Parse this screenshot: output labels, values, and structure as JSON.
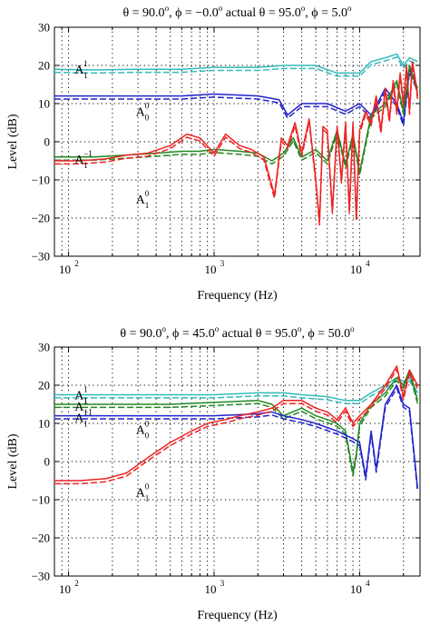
{
  "chart_data": [
    {
      "type": "line",
      "title": {
        "t1": "θ = 90.0",
        "t2": ", ϕ = −0.0",
        "t3": " actual θ = 95.0",
        "t4": ", ϕ = 5.0",
        "deg": "o"
      },
      "xlabel": "Frequency (Hz)",
      "ylabel": "Level (dB)",
      "xscale": "log",
      "xlim": [
        80,
        26000
      ],
      "ylim": [
        -30,
        30
      ],
      "yticks": [
        "30",
        "20",
        "10",
        "0",
        "−10",
        "−20",
        "−30"
      ],
      "xticks": [
        {
          "base": "10",
          "exp": "2"
        },
        {
          "base": "10",
          "exp": "3"
        },
        {
          "base": "10",
          "exp": "4"
        }
      ],
      "grid": true,
      "annotations": [
        {
          "base": "A",
          "sub": "1",
          "sup": "1",
          "x": 110,
          "y": 19
        },
        {
          "base": "A",
          "sub": "0",
          "sup": "0",
          "x": 290,
          "y": 8
        },
        {
          "base": "A",
          "sub": "1",
          "sup": "−1",
          "x": 110,
          "y": -4.5
        },
        {
          "base": "A",
          "sub": "1",
          "sup": "0",
          "x": 290,
          "y": -15
        }
      ],
      "series": [
        {
          "color": "#33bbbb",
          "x": [
            80,
            150,
            300,
            600,
            1000,
            2000,
            3000,
            5000,
            7000,
            10000,
            12000,
            15000,
            18000,
            20000,
            22000,
            25000
          ],
          "y": [
            19,
            18.8,
            19,
            19,
            19.5,
            19.5,
            20,
            20,
            18,
            18,
            21,
            22,
            23,
            20,
            22,
            21
          ]
        },
        {
          "color": "#2222cc",
          "x": [
            80,
            150,
            300,
            600,
            1000,
            2000,
            2800,
            3200,
            4000,
            6000,
            8000,
            10000,
            12000,
            15000,
            18000,
            20000,
            22000,
            25000
          ],
          "y": [
            12,
            12,
            12,
            12,
            12.5,
            12,
            11,
            7,
            10,
            10,
            8,
            10,
            7,
            14,
            10,
            5,
            19,
            14
          ]
        },
        {
          "color": "#228822",
          "x": [
            80,
            150,
            250,
            400,
            600,
            800,
            1000,
            1500,
            2000,
            2500,
            3000,
            3500,
            4000,
            5000,
            6000,
            7000,
            8000,
            9000,
            10000,
            12000,
            15000,
            18000,
            20000,
            22000,
            25000
          ],
          "y": [
            -4,
            -4,
            -3.5,
            -3,
            -2.5,
            -2.5,
            -2,
            -2.5,
            -3,
            -5,
            -3,
            1,
            -4,
            -2,
            -5,
            3,
            -6,
            2,
            -8,
            7,
            10,
            16,
            8,
            20,
            14
          ]
        },
        {
          "color": "#ee2222",
          "x": [
            80,
            120,
            180,
            250,
            350,
            500,
            650,
            800,
            1000,
            1200,
            1500,
            1800,
            2200,
            2600,
            2900,
            3200,
            3600,
            4000,
            4500,
            5000,
            5300,
            5600,
            6000,
            6500,
            7000,
            7500,
            8000,
            8500,
            9000,
            9500,
            10000,
            11000,
            12000,
            13000,
            14000,
            15000,
            16000,
            17000,
            18000,
            19000,
            20000,
            21000,
            22000,
            23000,
            24000,
            25000
          ],
          "y": [
            -5,
            -5,
            -4.5,
            -3.5,
            -3,
            -1,
            2,
            1,
            -3,
            2,
            -1,
            -2,
            -4,
            -14,
            1,
            -1,
            5,
            -3,
            6,
            -10,
            -21,
            4,
            3,
            -18,
            4,
            -10,
            5,
            -18,
            5,
            -20,
            3,
            8,
            5,
            12,
            3,
            14,
            6,
            16,
            8,
            18,
            10,
            20,
            8,
            21,
            17,
            12
          ]
        }
      ]
    },
    {
      "type": "line",
      "title": {
        "t1": "θ = 90.0",
        "t2": ", ϕ = 45.0",
        "t3": " actual θ = 95.0",
        "t4": ", ϕ = 50.0",
        "deg": "o"
      },
      "xlabel": "Frequency (Hz)",
      "ylabel": "Level (dB)",
      "xscale": "log",
      "xlim": [
        80,
        26000
      ],
      "ylim": [
        -30,
        30
      ],
      "yticks": [
        "30",
        "20",
        "10",
        "0",
        "−10",
        "−20",
        "−30"
      ],
      "xticks": [
        {
          "base": "10",
          "exp": "2"
        },
        {
          "base": "10",
          "exp": "3"
        },
        {
          "base": "10",
          "exp": "4"
        }
      ],
      "grid": true,
      "annotations": [
        {
          "base": "A",
          "sub": "1",
          "sup": "1",
          "x": 110,
          "y": 17.5
        },
        {
          "base": "A",
          "sub": "1",
          "sup": "1",
          "x": 110,
          "y": 14.5
        },
        {
          "base": "A",
          "sub": "1",
          "sup": "−1",
          "x": 110,
          "y": 11.5
        },
        {
          "base": "A",
          "sub": "0",
          "sup": "0",
          "x": 290,
          "y": 8.5
        },
        {
          "base": "A",
          "sub": "1",
          "sup": "0",
          "x": 290,
          "y": -8
        }
      ],
      "series": [
        {
          "color": "#33bbbb",
          "x": [
            80,
            200,
            500,
            1000,
            2000,
            3000,
            4000,
            6000,
            8000,
            10000,
            12000,
            15000,
            18000,
            20000,
            22000,
            25000
          ],
          "y": [
            17.5,
            17.5,
            17.5,
            17.5,
            18,
            18,
            17.5,
            17,
            16,
            16,
            18,
            20,
            22,
            21,
            22,
            18
          ]
        },
        {
          "color": "#228822",
          "x": [
            80,
            200,
            500,
            1000,
            2000,
            2500,
            3000,
            4000,
            5000,
            6000,
            7000,
            8000,
            9000,
            9500,
            10000,
            12000,
            15000,
            18000,
            20000,
            22000,
            25000
          ],
          "y": [
            15,
            15,
            15,
            15.5,
            16,
            15,
            12,
            14,
            12,
            11,
            10,
            8,
            -3,
            2,
            10,
            15,
            18,
            22,
            20,
            24,
            16
          ]
        },
        {
          "color": "#2222cc",
          "x": [
            80,
            200,
            500,
            1000,
            2000,
            2500,
            3000,
            4000,
            5000,
            7000,
            9000,
            10000,
            11000,
            12000,
            13000,
            15000,
            18000,
            20000,
            22000,
            25000
          ],
          "y": [
            12,
            12,
            12,
            12,
            12.5,
            13,
            12,
            11,
            10,
            8,
            6,
            5,
            -4,
            8,
            -2,
            15,
            20,
            15,
            14,
            -7
          ]
        },
        {
          "color": "#ee2222",
          "x": [
            80,
            120,
            180,
            250,
            350,
            500,
            700,
            900,
            1200,
            1500,
            2000,
            2500,
            3000,
            4000,
            5000,
            6000,
            7000,
            8000,
            9000,
            10000,
            12000,
            15000,
            18000,
            20000,
            22000,
            25000
          ],
          "y": [
            -5,
            -5,
            -4.5,
            -3,
            1,
            5,
            8,
            10,
            11,
            12,
            13,
            14,
            16,
            16,
            14,
            13,
            11,
            14,
            10,
            12,
            15,
            20,
            25,
            17,
            24,
            20
          ]
        }
      ]
    }
  ]
}
